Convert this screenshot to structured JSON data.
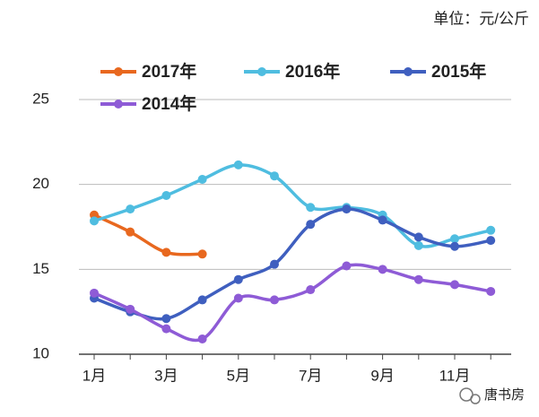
{
  "chart_data": {
    "type": "line",
    "annotation": "单位：元/公斤",
    "watermark": "唐书房",
    "categories": [
      "1月",
      null,
      "3月",
      null,
      "5月",
      null,
      "7月",
      null,
      "9月",
      null,
      "11月",
      null
    ],
    "series": [
      {
        "name": "2017年",
        "color": "#e8681f",
        "values": [
          18.2,
          17.2,
          16.0,
          15.9,
          null,
          null,
          null,
          null,
          null,
          null,
          null,
          null
        ]
      },
      {
        "name": "2016年",
        "color": "#4fbde0",
        "values": [
          17.85,
          18.55,
          19.35,
          20.3,
          21.15,
          20.5,
          18.65,
          18.65,
          18.2,
          16.4,
          16.8,
          17.3
        ]
      },
      {
        "name": "2015年",
        "color": "#3f5fbf",
        "values": [
          13.3,
          12.5,
          12.1,
          13.2,
          14.4,
          15.3,
          17.65,
          18.55,
          17.9,
          16.9,
          16.35,
          16.7
        ]
      },
      {
        "name": "2014年",
        "color": "#8e5bd6",
        "values": [
          13.6,
          12.65,
          11.5,
          10.9,
          13.3,
          13.2,
          13.8,
          15.2,
          15.0,
          14.4,
          14.1,
          13.7
        ]
      }
    ],
    "ylim": [
      10,
      25
    ],
    "yticks": [
      10,
      15,
      20,
      25
    ],
    "grid": true
  }
}
